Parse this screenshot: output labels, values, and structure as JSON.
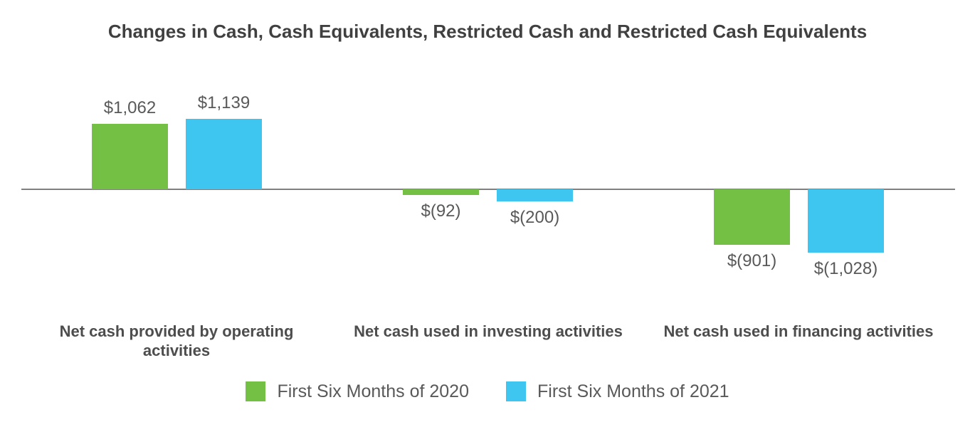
{
  "chart_data": {
    "type": "bar",
    "title": "Changes in Cash, Cash Equivalents, Restricted Cash and Restricted Cash Equivalents",
    "categories": [
      "Net cash provided by operating activities",
      "Net cash used in investing activities",
      "Net cash used in financing activities"
    ],
    "series": [
      {
        "name": "First Six Months of 2020",
        "color": "#74C044",
        "values": [
          1062,
          -92,
          -901
        ],
        "data_labels": [
          "$1,062",
          "$(92)",
          "$(901)"
        ]
      },
      {
        "name": "First Six Months of 2021",
        "color": "#3EC6F0",
        "values": [
          1139,
          -200,
          -1028
        ],
        "data_labels": [
          "$1,139",
          "$(200)",
          "$(1,028)"
        ]
      }
    ],
    "ylabel": "",
    "xlabel": "",
    "ylim": [
      -1139,
      1139
    ],
    "grid": false,
    "y_axis_ticks_visible": false,
    "legend_position": "bottom",
    "baseline_color": "#808080"
  }
}
